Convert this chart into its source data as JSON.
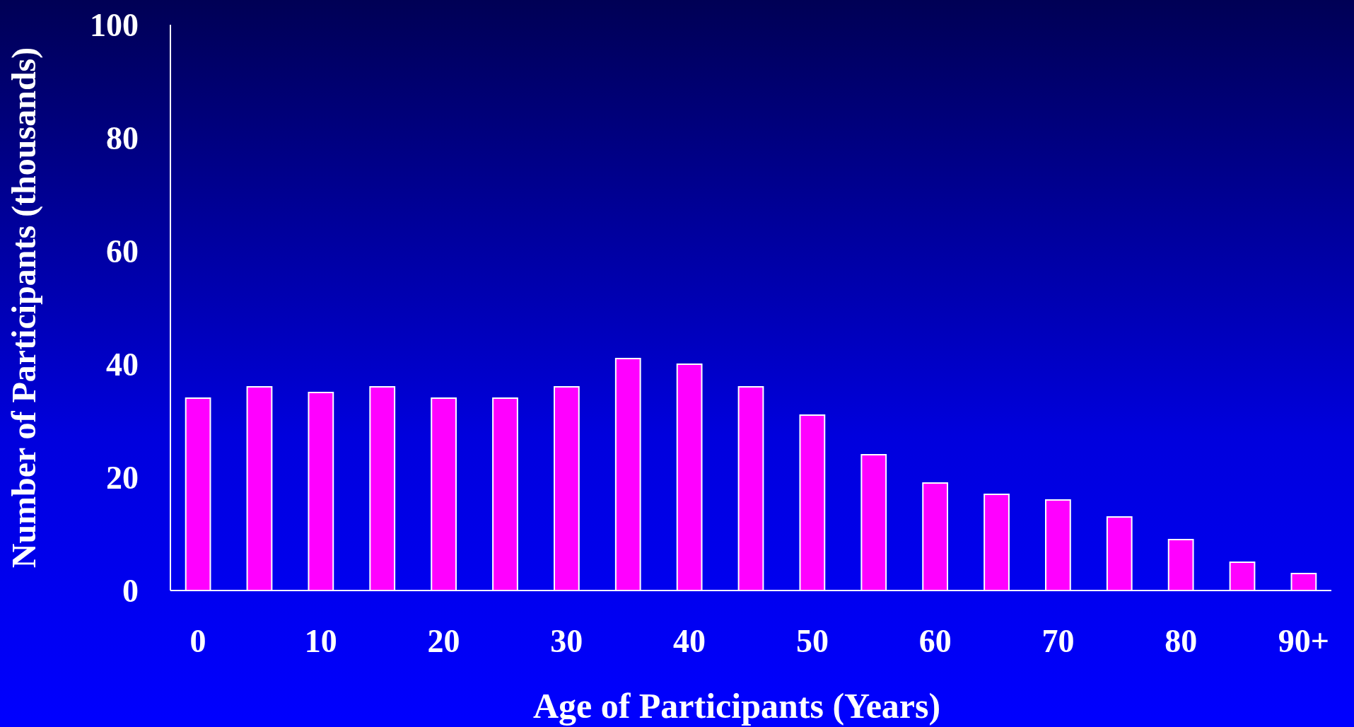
{
  "chart_data": {
    "type": "bar",
    "xlabel": "Age of Participants (Years)",
    "ylabel": "Number of Participants (thousands)",
    "categories": [
      "0",
      null,
      "10",
      null,
      "20",
      null,
      "30",
      null,
      "40",
      null,
      "50",
      null,
      "60",
      null,
      "70",
      null,
      "80",
      null,
      "90+"
    ],
    "values": [
      34,
      36,
      35,
      36,
      34,
      34,
      36,
      41,
      40,
      36,
      31,
      24,
      19,
      17,
      16,
      13,
      9,
      5,
      3
    ],
    "color": "#ff00ff",
    "ylim": [
      0,
      100
    ],
    "yticks": [
      0,
      20,
      40,
      60,
      80,
      100
    ],
    "grid": false
  }
}
